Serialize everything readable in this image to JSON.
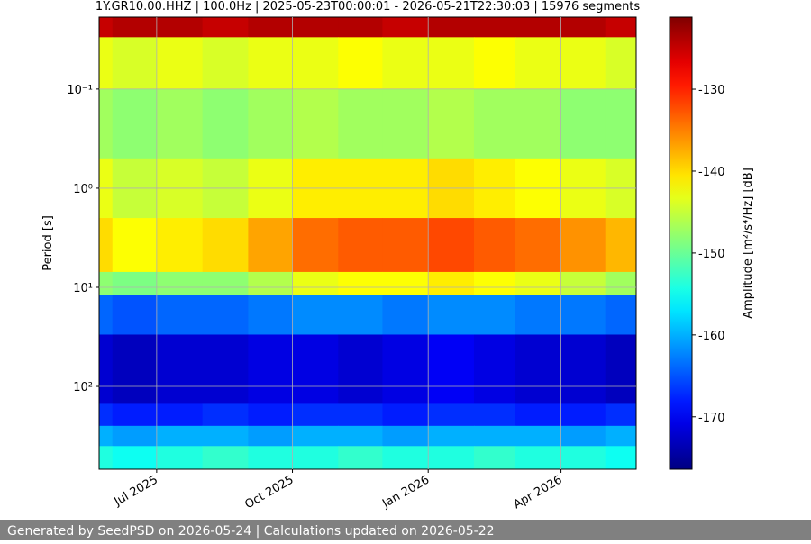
{
  "chart_data": {
    "type": "heatmap",
    "title": "1Y.GR10.00.HHZ | 100.0Hz | 2025-05-23T00:00:01 - 2026-05-21T22:30:03 | 15976 segments",
    "y_label": "Period [s]",
    "colorbar_label": "Amplitude [m²/s⁴/Hz] [dB]",
    "colormap": "jet",
    "ylog": true,
    "yinverted": false,
    "grid": true,
    "xlim": [
      "2025-05-23T00:00:01",
      "2026-05-21T22:30:03"
    ],
    "xticks": [
      {
        "value": "2025-07",
        "label": "Jul 2025"
      },
      {
        "value": "2025-10",
        "label": "Oct 2025"
      },
      {
        "value": "2026-01",
        "label": "Jan 2026"
      },
      {
        "value": "2026-04",
        "label": "Apr 2026"
      }
    ],
    "ylim": [
      0.0188,
      685
    ],
    "yticks": [
      {
        "value": 0.1,
        "label": "10⁻¹"
      },
      {
        "value": 1,
        "label": "10⁰"
      },
      {
        "value": 10,
        "label": "10¹"
      },
      {
        "value": 100,
        "label": "10²"
      }
    ],
    "clim": [
      -176.4,
      -121.2
    ],
    "cticks": [
      -130,
      -140,
      -150,
      -160,
      -170
    ],
    "time_edges": [
      "2025-05-23T00:00:01",
      "2025-06",
      "2025-07",
      "2025-08",
      "2025-09",
      "2025-10",
      "2025-11",
      "2025-12",
      "2026-01",
      "2026-02",
      "2026-03",
      "2026-04",
      "2026-05",
      "2026-05-21T22:30:03"
    ],
    "period_edges": [
      0.0188,
      0.03,
      0.1,
      0.5,
      2,
      7,
      12,
      30,
      150,
      250,
      400,
      685
    ],
    "z": [
      [
        -125,
        -124,
        -124,
        -125,
        -124,
        -124,
        -124,
        -125,
        -124,
        -124,
        -124,
        -124,
        -125
      ],
      [
        -143,
        -144,
        -143,
        -144,
        -143,
        -143,
        -142,
        -143,
        -143,
        -142,
        -143,
        -143,
        -144
      ],
      [
        -147,
        -148,
        -147,
        -148,
        -147,
        -146,
        -147,
        -147,
        -146,
        -147,
        -147,
        -148,
        -148
      ],
      [
        -143,
        -145,
        -144,
        -145,
        -143,
        -141,
        -141,
        -141,
        -140,
        -141,
        -142,
        -143,
        -144
      ],
      [
        -140,
        -142,
        -141,
        -140,
        -137,
        -134,
        -133,
        -133,
        -132,
        -133,
        -134,
        -136,
        -138
      ],
      [
        -148,
        -149,
        -148,
        -148,
        -146,
        -143,
        -142,
        -142,
        -141,
        -142,
        -143,
        -145,
        -147
      ],
      [
        -164,
        -165,
        -164,
        -164,
        -163,
        -162,
        -162,
        -163,
        -162,
        -162,
        -163,
        -163,
        -164
      ],
      [
        -172,
        -173,
        -172,
        -172,
        -171,
        -171,
        -172,
        -171,
        -170,
        -171,
        -172,
        -172,
        -173
      ],
      [
        -167,
        -168,
        -168,
        -167,
        -168,
        -167,
        -167,
        -168,
        -167,
        -167,
        -168,
        -168,
        -167
      ],
      [
        -160,
        -161,
        -160,
        -160,
        -161,
        -160,
        -160,
        -161,
        -160,
        -160,
        -160,
        -161,
        -160
      ],
      [
        -154,
        -155,
        -154,
        -153,
        -154,
        -154,
        -153,
        -154,
        -154,
        -153,
        -154,
        -154,
        -155
      ]
    ]
  },
  "footer": "Generated by SeedPSD on 2026-05-24 | Calculations updated on 2026-05-22"
}
